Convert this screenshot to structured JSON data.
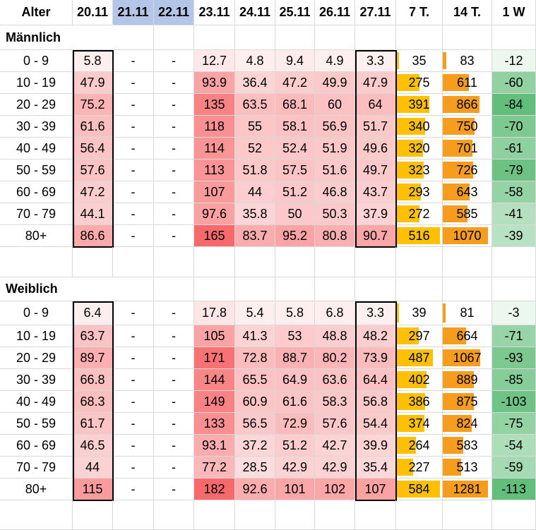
{
  "header": [
    "Alter",
    "20.11",
    "21.11",
    "22.11",
    "23.11",
    "24.11",
    "25.11",
    "26.11",
    "27.11",
    "7 T.",
    "14 T.",
    "1 W"
  ],
  "sections": [
    {
      "label": "Männlich",
      "rows": [
        {
          "age": "0 - 9",
          "days": [
            "5.8",
            "-",
            "-",
            "12.7",
            "4.8",
            "9.4",
            "4.9",
            "3.3"
          ],
          "t7": "35",
          "t14": "83",
          "w1": "-12"
        },
        {
          "age": "10 - 19",
          "days": [
            "47.9",
            "-",
            "-",
            "93.9",
            "36.4",
            "47.2",
            "49.9",
            "47.9"
          ],
          "t7": "275",
          "t14": "611",
          "w1": "-60"
        },
        {
          "age": "20 - 29",
          "days": [
            "75.2",
            "-",
            "-",
            "135",
            "63.5",
            "68.1",
            "60",
            "64"
          ],
          "t7": "391",
          "t14": "866",
          "w1": "-84"
        },
        {
          "age": "30 - 39",
          "days": [
            "61.6",
            "-",
            "-",
            "118",
            "55",
            "58.1",
            "56.9",
            "51.7"
          ],
          "t7": "340",
          "t14": "750",
          "w1": "-70"
        },
        {
          "age": "40 - 49",
          "days": [
            "56.4",
            "-",
            "-",
            "114",
            "52",
            "52.4",
            "51.9",
            "49.6"
          ],
          "t7": "320",
          "t14": "701",
          "w1": "-61"
        },
        {
          "age": "50 - 59",
          "days": [
            "57.6",
            "-",
            "-",
            "113",
            "51.8",
            "57.5",
            "51.6",
            "49.7"
          ],
          "t7": "323",
          "t14": "726",
          "w1": "-79"
        },
        {
          "age": "60 - 69",
          "days": [
            "47.2",
            "-",
            "-",
            "107",
            "44",
            "51.2",
            "46.8",
            "43.7"
          ],
          "t7": "293",
          "t14": "643",
          "w1": "-58"
        },
        {
          "age": "70 - 79",
          "days": [
            "44.1",
            "-",
            "-",
            "97.6",
            "35.8",
            "50",
            "50.3",
            "37.9"
          ],
          "t7": "272",
          "t14": "585",
          "w1": "-41"
        },
        {
          "age": "80+",
          "days": [
            "86.6",
            "-",
            "-",
            "165",
            "83.7",
            "95.2",
            "80.8",
            "90.7"
          ],
          "t7": "516",
          "t14": "1070",
          "w1": "-39"
        }
      ]
    },
    {
      "label": "Weiblich",
      "rows": [
        {
          "age": "0 - 9",
          "days": [
            "6.4",
            "-",
            "-",
            "17.8",
            "5.4",
            "5.8",
            "6.8",
            "3.3"
          ],
          "t7": "39",
          "t14": "81",
          "w1": "-3"
        },
        {
          "age": "10 - 19",
          "days": [
            "63.7",
            "-",
            "-",
            "105",
            "41.3",
            "53",
            "48.8",
            "48.2"
          ],
          "t7": "297",
          "t14": "664",
          "w1": "-71"
        },
        {
          "age": "20 - 29",
          "days": [
            "89.7",
            "-",
            "-",
            "171",
            "72.8",
            "88.7",
            "80.2",
            "73.9"
          ],
          "t7": "487",
          "t14": "1067",
          "w1": "-93"
        },
        {
          "age": "30 - 39",
          "days": [
            "66.8",
            "-",
            "-",
            "144",
            "65.5",
            "64.9",
            "63.6",
            "64.4"
          ],
          "t7": "402",
          "t14": "889",
          "w1": "-85"
        },
        {
          "age": "40 - 49",
          "days": [
            "68.3",
            "-",
            "-",
            "149",
            "60.9",
            "61.6",
            "58.3",
            "56.8"
          ],
          "t7": "386",
          "t14": "875",
          "w1": "-103"
        },
        {
          "age": "50 - 59",
          "days": [
            "61.7",
            "-",
            "-",
            "133",
            "56.5",
            "72.9",
            "57.6",
            "54.4"
          ],
          "t7": "374",
          "t14": "824",
          "w1": "-75"
        },
        {
          "age": "60 - 69",
          "days": [
            "46.5",
            "-",
            "-",
            "93.1",
            "37.2",
            "51.2",
            "42.7",
            "39.9"
          ],
          "t7": "264",
          "t14": "583",
          "w1": "-54"
        },
        {
          "age": "70 - 79",
          "days": [
            "44",
            "-",
            "-",
            "77.2",
            "28.5",
            "42.9",
            "42.9",
            "35.4"
          ],
          "t7": "227",
          "t14": "513",
          "w1": "-59"
        },
        {
          "age": "80+",
          "days": [
            "115",
            "-",
            "-",
            "182",
            "92.6",
            "101",
            "102",
            "107"
          ],
          "t7": "584",
          "t14": "1281",
          "w1": "-113"
        }
      ]
    }
  ],
  "colors": {
    "heat_low": "#ffffff",
    "heat_high": "#f8696b",
    "t7_bar": "#ffc000",
    "t14_bar": "#f79d1e",
    "w1_low": "#ffffff",
    "w1_high": "#63be7b",
    "header_highlight": "#b4c6e7"
  }
}
